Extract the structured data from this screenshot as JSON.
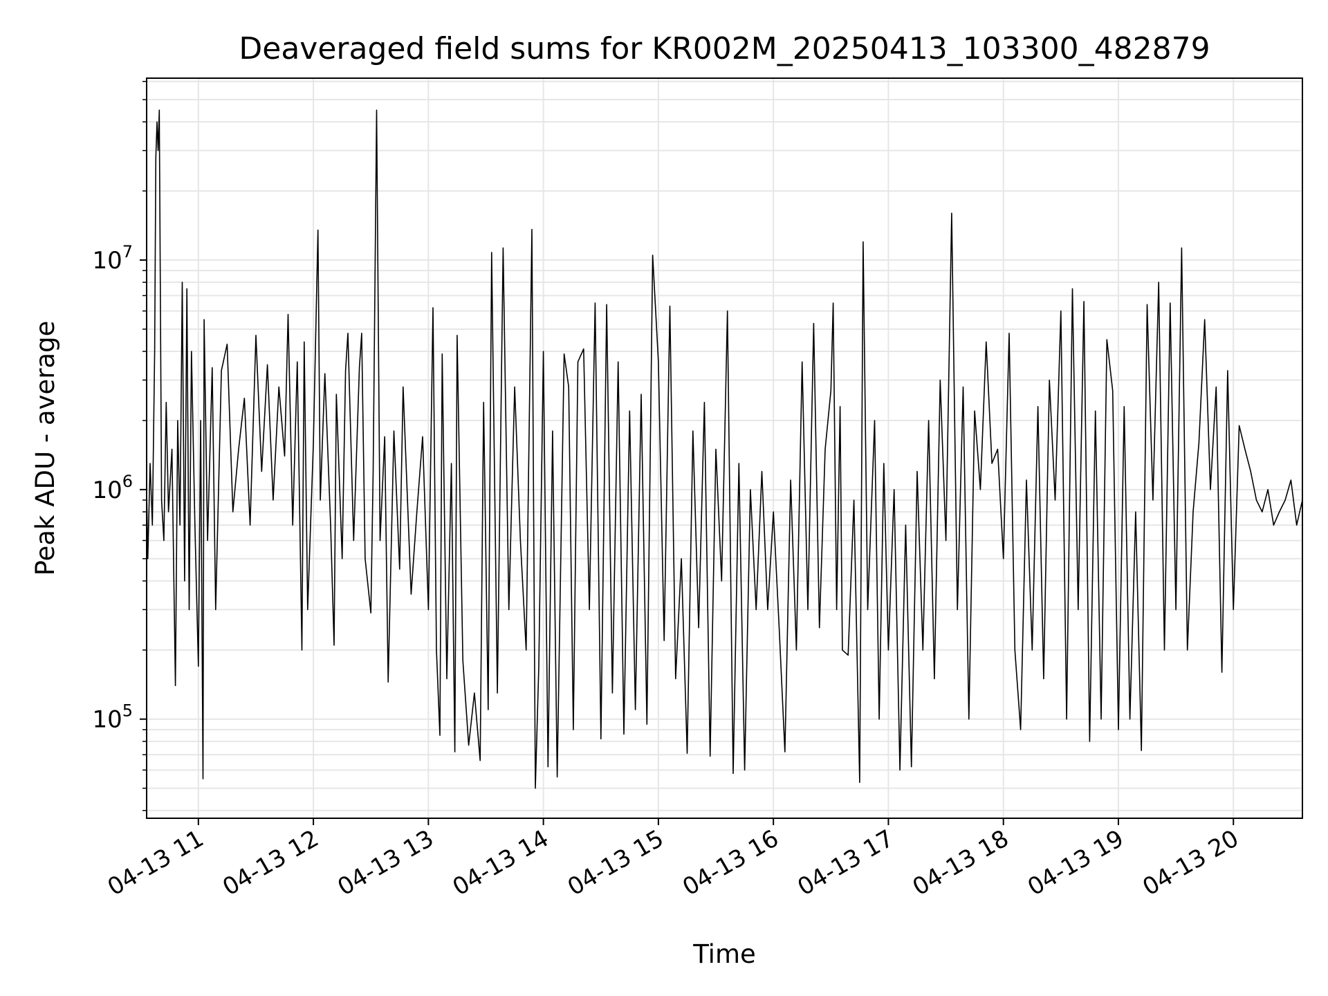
{
  "chart_data": {
    "type": "line",
    "title": "Deaveraged field sums for KR002M_20250413_103300_482879",
    "xlabel": "Time",
    "ylabel": "Peak ADU - average",
    "x_tick_labels": [
      "04-13 11",
      "04-13 12",
      "04-13 13",
      "04-13 14",
      "04-13 15",
      "04-13 16",
      "04-13 17",
      "04-13 18",
      "04-13 19",
      "04-13 20"
    ],
    "x_tick_hours": [
      11,
      12,
      13,
      14,
      15,
      16,
      17,
      18,
      19,
      20
    ],
    "x_range_hours": [
      10.55,
      20.6
    ],
    "y_scale": "log",
    "ylim": [
      37000,
      62000000
    ],
    "y_major_ticks": [
      {
        "value": 100000,
        "base": "10",
        "exp": "5"
      },
      {
        "value": 1000000,
        "base": "10",
        "exp": "6"
      },
      {
        "value": 10000000,
        "base": "10",
        "exp": "7"
      }
    ],
    "grid": true,
    "line_color": "#000000",
    "grid_color": "#e6e6e6",
    "series": [
      {
        "line_color": "#000000",
        "points": [
          [
            10.55,
            1000000
          ],
          [
            10.56,
            500000
          ],
          [
            10.58,
            1300000
          ],
          [
            10.6,
            700000
          ],
          [
            10.62,
            4000000
          ],
          [
            10.63,
            28000000
          ],
          [
            10.64,
            40000000
          ],
          [
            10.65,
            30000000
          ],
          [
            10.66,
            45000000
          ],
          [
            10.68,
            900000
          ],
          [
            10.7,
            600000
          ],
          [
            10.72,
            2400000
          ],
          [
            10.74,
            800000
          ],
          [
            10.77,
            1500000
          ],
          [
            10.8,
            140000
          ],
          [
            10.82,
            2000000
          ],
          [
            10.84,
            700000
          ],
          [
            10.86,
            8000000
          ],
          [
            10.88,
            400000
          ],
          [
            10.9,
            7500000
          ],
          [
            10.92,
            300000
          ],
          [
            10.94,
            4000000
          ],
          [
            10.97,
            700000
          ],
          [
            11.0,
            170000
          ],
          [
            11.02,
            2000000
          ],
          [
            11.04,
            55000
          ],
          [
            11.05,
            5500000
          ],
          [
            11.08,
            600000
          ],
          [
            11.12,
            3400000
          ],
          [
            11.15,
            300000
          ],
          [
            11.2,
            3300000
          ],
          [
            11.25,
            4300000
          ],
          [
            11.3,
            800000
          ],
          [
            11.35,
            1500000
          ],
          [
            11.4,
            2500000
          ],
          [
            11.45,
            700000
          ],
          [
            11.5,
            4700000
          ],
          [
            11.55,
            1200000
          ],
          [
            11.6,
            3500000
          ],
          [
            11.65,
            900000
          ],
          [
            11.7,
            2800000
          ],
          [
            11.75,
            1400000
          ],
          [
            11.78,
            5800000
          ],
          [
            11.82,
            700000
          ],
          [
            11.86,
            3600000
          ],
          [
            11.9,
            200000
          ],
          [
            11.92,
            4400000
          ],
          [
            11.95,
            300000
          ],
          [
            12.0,
            1600000
          ],
          [
            12.04,
            13500000
          ],
          [
            12.06,
            900000
          ],
          [
            12.1,
            3200000
          ],
          [
            12.15,
            700000
          ],
          [
            12.18,
            210000
          ],
          [
            12.2,
            2600000
          ],
          [
            12.25,
            500000
          ],
          [
            12.28,
            3300000
          ],
          [
            12.3,
            4800000
          ],
          [
            12.35,
            600000
          ],
          [
            12.4,
            3400000
          ],
          [
            12.42,
            4800000
          ],
          [
            12.45,
            500000
          ],
          [
            12.5,
            290000
          ],
          [
            12.52,
            1200000
          ],
          [
            12.55,
            45000000
          ],
          [
            12.58,
            600000
          ],
          [
            12.62,
            1700000
          ],
          [
            12.65,
            145000
          ],
          [
            12.7,
            1800000
          ],
          [
            12.75,
            450000
          ],
          [
            12.78,
            2800000
          ],
          [
            12.85,
            350000
          ],
          [
            12.9,
            800000
          ],
          [
            12.95,
            1700000
          ],
          [
            13.0,
            300000
          ],
          [
            13.04,
            6200000
          ],
          [
            13.07,
            200000
          ],
          [
            13.1,
            85000
          ],
          [
            13.12,
            3900000
          ],
          [
            13.16,
            150000
          ],
          [
            13.2,
            1300000
          ],
          [
            13.23,
            72000
          ],
          [
            13.25,
            4700000
          ],
          [
            13.3,
            180000
          ],
          [
            13.35,
            77000
          ],
          [
            13.4,
            130000
          ],
          [
            13.45,
            66000
          ],
          [
            13.48,
            2400000
          ],
          [
            13.52,
            110000
          ],
          [
            13.55,
            10800000
          ],
          [
            13.6,
            130000
          ],
          [
            13.65,
            11300000
          ],
          [
            13.7,
            300000
          ],
          [
            13.75,
            2800000
          ],
          [
            13.8,
            600000
          ],
          [
            13.85,
            200000
          ],
          [
            13.9,
            13600000
          ],
          [
            13.93,
            50000
          ],
          [
            13.96,
            170000
          ],
          [
            14.0,
            4000000
          ],
          [
            14.04,
            62000
          ],
          [
            14.08,
            1800000
          ],
          [
            14.12,
            56000
          ],
          [
            14.18,
            3900000
          ],
          [
            14.22,
            2800000
          ],
          [
            14.26,
            90000
          ],
          [
            14.3,
            3600000
          ],
          [
            14.35,
            4100000
          ],
          [
            14.4,
            300000
          ],
          [
            14.45,
            6500000
          ],
          [
            14.5,
            82000
          ],
          [
            14.55,
            6400000
          ],
          [
            14.6,
            130000
          ],
          [
            14.65,
            3600000
          ],
          [
            14.7,
            86000
          ],
          [
            14.75,
            2200000
          ],
          [
            14.8,
            110000
          ],
          [
            14.85,
            2600000
          ],
          [
            14.9,
            95000
          ],
          [
            14.95,
            10500000
          ],
          [
            15.0,
            3600000
          ],
          [
            15.05,
            220000
          ],
          [
            15.1,
            6300000
          ],
          [
            15.15,
            150000
          ],
          [
            15.2,
            500000
          ],
          [
            15.25,
            71000
          ],
          [
            15.3,
            1800000
          ],
          [
            15.35,
            250000
          ],
          [
            15.4,
            2400000
          ],
          [
            15.45,
            69000
          ],
          [
            15.5,
            1500000
          ],
          [
            15.55,
            400000
          ],
          [
            15.6,
            6000000
          ],
          [
            15.65,
            58000
          ],
          [
            15.7,
            1300000
          ],
          [
            15.75,
            60000
          ],
          [
            15.8,
            1000000
          ],
          [
            15.85,
            300000
          ],
          [
            15.9,
            1200000
          ],
          [
            15.95,
            300000
          ],
          [
            16.0,
            800000
          ],
          [
            16.05,
            250000
          ],
          [
            16.1,
            72000
          ],
          [
            16.15,
            1100000
          ],
          [
            16.2,
            200000
          ],
          [
            16.25,
            3600000
          ],
          [
            16.3,
            300000
          ],
          [
            16.35,
            5300000
          ],
          [
            16.4,
            250000
          ],
          [
            16.45,
            1500000
          ],
          [
            16.5,
            2700000
          ],
          [
            16.52,
            6500000
          ],
          [
            16.55,
            300000
          ],
          [
            16.58,
            2300000
          ],
          [
            16.6,
            200000
          ],
          [
            16.65,
            190000
          ],
          [
            16.7,
            900000
          ],
          [
            16.75,
            53000
          ],
          [
            16.78,
            12000000
          ],
          [
            16.82,
            300000
          ],
          [
            16.88,
            2000000
          ],
          [
            16.92,
            100000
          ],
          [
            16.96,
            1300000
          ],
          [
            17.0,
            200000
          ],
          [
            17.05,
            1000000
          ],
          [
            17.1,
            60000
          ],
          [
            17.15,
            700000
          ],
          [
            17.2,
            62000
          ],
          [
            17.25,
            1200000
          ],
          [
            17.3,
            200000
          ],
          [
            17.35,
            2000000
          ],
          [
            17.4,
            150000
          ],
          [
            17.45,
            3000000
          ],
          [
            17.5,
            600000
          ],
          [
            17.55,
            16000000
          ],
          [
            17.6,
            300000
          ],
          [
            17.65,
            2800000
          ],
          [
            17.7,
            100000
          ],
          [
            17.75,
            2200000
          ],
          [
            17.8,
            1000000
          ],
          [
            17.85,
            4400000
          ],
          [
            17.9,
            1300000
          ],
          [
            17.95,
            1500000
          ],
          [
            18.0,
            500000
          ],
          [
            18.05,
            4800000
          ],
          [
            18.1,
            200000
          ],
          [
            18.15,
            90000
          ],
          [
            18.2,
            1100000
          ],
          [
            18.25,
            200000
          ],
          [
            18.3,
            2300000
          ],
          [
            18.35,
            150000
          ],
          [
            18.4,
            3000000
          ],
          [
            18.45,
            900000
          ],
          [
            18.5,
            6000000
          ],
          [
            18.55,
            100000
          ],
          [
            18.6,
            7500000
          ],
          [
            18.65,
            300000
          ],
          [
            18.7,
            6600000
          ],
          [
            18.75,
            80000
          ],
          [
            18.8,
            2200000
          ],
          [
            18.85,
            100000
          ],
          [
            18.9,
            4500000
          ],
          [
            18.95,
            2700000
          ],
          [
            19.0,
            90000
          ],
          [
            19.05,
            2300000
          ],
          [
            19.1,
            100000
          ],
          [
            19.15,
            800000
          ],
          [
            19.2,
            73000
          ],
          [
            19.25,
            6400000
          ],
          [
            19.3,
            900000
          ],
          [
            19.35,
            8000000
          ],
          [
            19.4,
            200000
          ],
          [
            19.45,
            6500000
          ],
          [
            19.5,
            300000
          ],
          [
            19.55,
            11300000
          ],
          [
            19.6,
            200000
          ],
          [
            19.65,
            800000
          ],
          [
            19.7,
            1600000
          ],
          [
            19.75,
            5500000
          ],
          [
            19.8,
            1000000
          ],
          [
            19.85,
            2800000
          ],
          [
            19.9,
            160000
          ],
          [
            19.95,
            3300000
          ],
          [
            20.0,
            300000
          ],
          [
            20.05,
            1900000
          ],
          [
            20.1,
            1500000
          ],
          [
            20.15,
            1200000
          ],
          [
            20.2,
            900000
          ],
          [
            20.25,
            800000
          ],
          [
            20.3,
            1000000
          ],
          [
            20.35,
            700000
          ],
          [
            20.4,
            800000
          ],
          [
            20.45,
            900000
          ],
          [
            20.5,
            1100000
          ],
          [
            20.55,
            700000
          ],
          [
            20.6,
            900000
          ]
        ]
      }
    ]
  }
}
